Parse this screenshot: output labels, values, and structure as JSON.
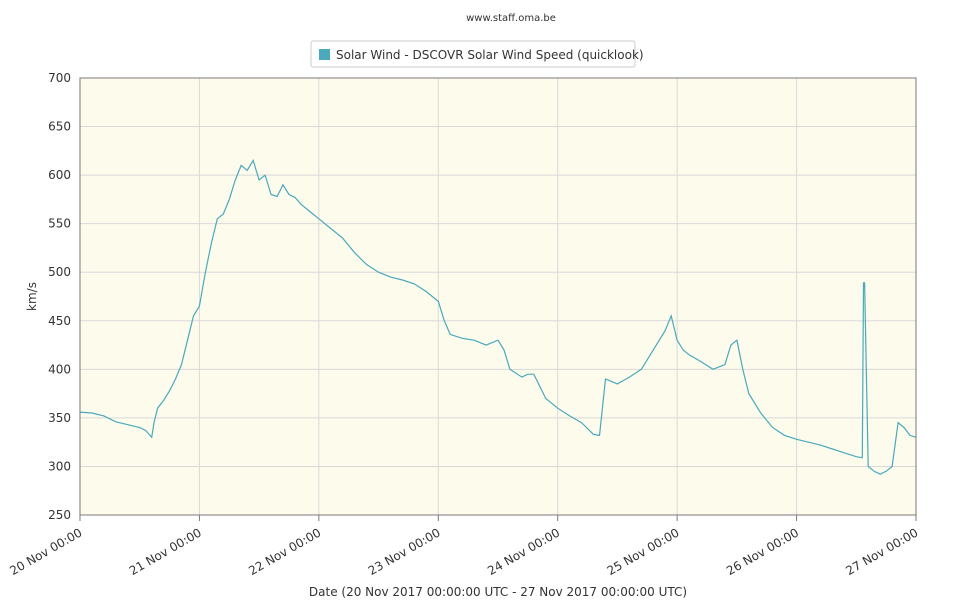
{
  "credit": "www.staff.oma.be",
  "chart_data": {
    "type": "line",
    "title": "",
    "xlabel": "Date (20 Nov 2017 00:00:00 UTC - 27 Nov 2017 00:00:00 UTC)",
    "ylabel": "km/s",
    "xlim": [
      0,
      7
    ],
    "ylim": [
      250,
      700
    ],
    "yticks": [
      250,
      300,
      350,
      400,
      450,
      500,
      550,
      600,
      650,
      700
    ],
    "xticks": [
      "20 Nov 00:00",
      "21 Nov 00:00",
      "22 Nov 00:00",
      "23 Nov 00:00",
      "24 Nov 00:00",
      "25 Nov 00:00",
      "26 Nov 00:00",
      "27 Nov 00:00"
    ],
    "grid": true,
    "legend_position": "top-center",
    "colors": {
      "series": "#4aa9bd",
      "plot_bg": "#fdfbec",
      "grid": "#d9d9d9"
    },
    "series": [
      {
        "name": "Solar Wind - DSCOVR Solar Wind Speed (quicklook)",
        "x_unit": "days since 20 Nov 00:00",
        "x": [
          0,
          0.1,
          0.2,
          0.3,
          0.4,
          0.5,
          0.55,
          0.6,
          0.62,
          0.65,
          0.7,
          0.75,
          0.8,
          0.85,
          0.9,
          0.95,
          1.0,
          1.05,
          1.1,
          1.15,
          1.2,
          1.25,
          1.3,
          1.35,
          1.4,
          1.45,
          1.5,
          1.55,
          1.6,
          1.65,
          1.7,
          1.75,
          1.8,
          1.85,
          1.9,
          1.95,
          2.0,
          2.1,
          2.2,
          2.3,
          2.4,
          2.5,
          2.6,
          2.7,
          2.8,
          2.9,
          3.0,
          3.05,
          3.1,
          3.2,
          3.3,
          3.4,
          3.5,
          3.55,
          3.6,
          3.7,
          3.75,
          3.8,
          3.9,
          4.0,
          4.1,
          4.2,
          4.3,
          4.35,
          4.4,
          4.5,
          4.6,
          4.7,
          4.8,
          4.9,
          4.95,
          5.0,
          5.05,
          5.1,
          5.2,
          5.3,
          5.4,
          5.45,
          5.5,
          5.55,
          5.6,
          5.7,
          5.8,
          5.9,
          6.0,
          6.1,
          6.2,
          6.3,
          6.4,
          6.5,
          6.55,
          6.56,
          6.57,
          6.6,
          6.65,
          6.7,
          6.75,
          6.8,
          6.85,
          6.9,
          6.95,
          7.0
        ],
        "y": [
          356,
          355,
          352,
          346,
          343,
          340,
          337,
          330,
          345,
          360,
          368,
          378,
          390,
          405,
          430,
          455,
          465,
          500,
          530,
          555,
          560,
          575,
          595,
          610,
          605,
          615,
          595,
          600,
          580,
          578,
          590,
          580,
          577,
          570,
          565,
          560,
          555,
          545,
          535,
          520,
          508,
          500,
          495,
          492,
          488,
          480,
          470,
          450,
          436,
          432,
          430,
          425,
          430,
          420,
          400,
          392,
          395,
          395,
          370,
          360,
          352,
          345,
          333,
          332,
          390,
          385,
          392,
          400,
          420,
          440,
          455,
          430,
          420,
          415,
          408,
          400,
          405,
          425,
          430,
          400,
          375,
          355,
          340,
          332,
          328,
          325,
          322,
          318,
          314,
          310,
          309,
          489,
          489,
          300,
          295,
          292,
          295,
          300,
          345,
          340,
          332,
          330
        ]
      }
    ]
  }
}
